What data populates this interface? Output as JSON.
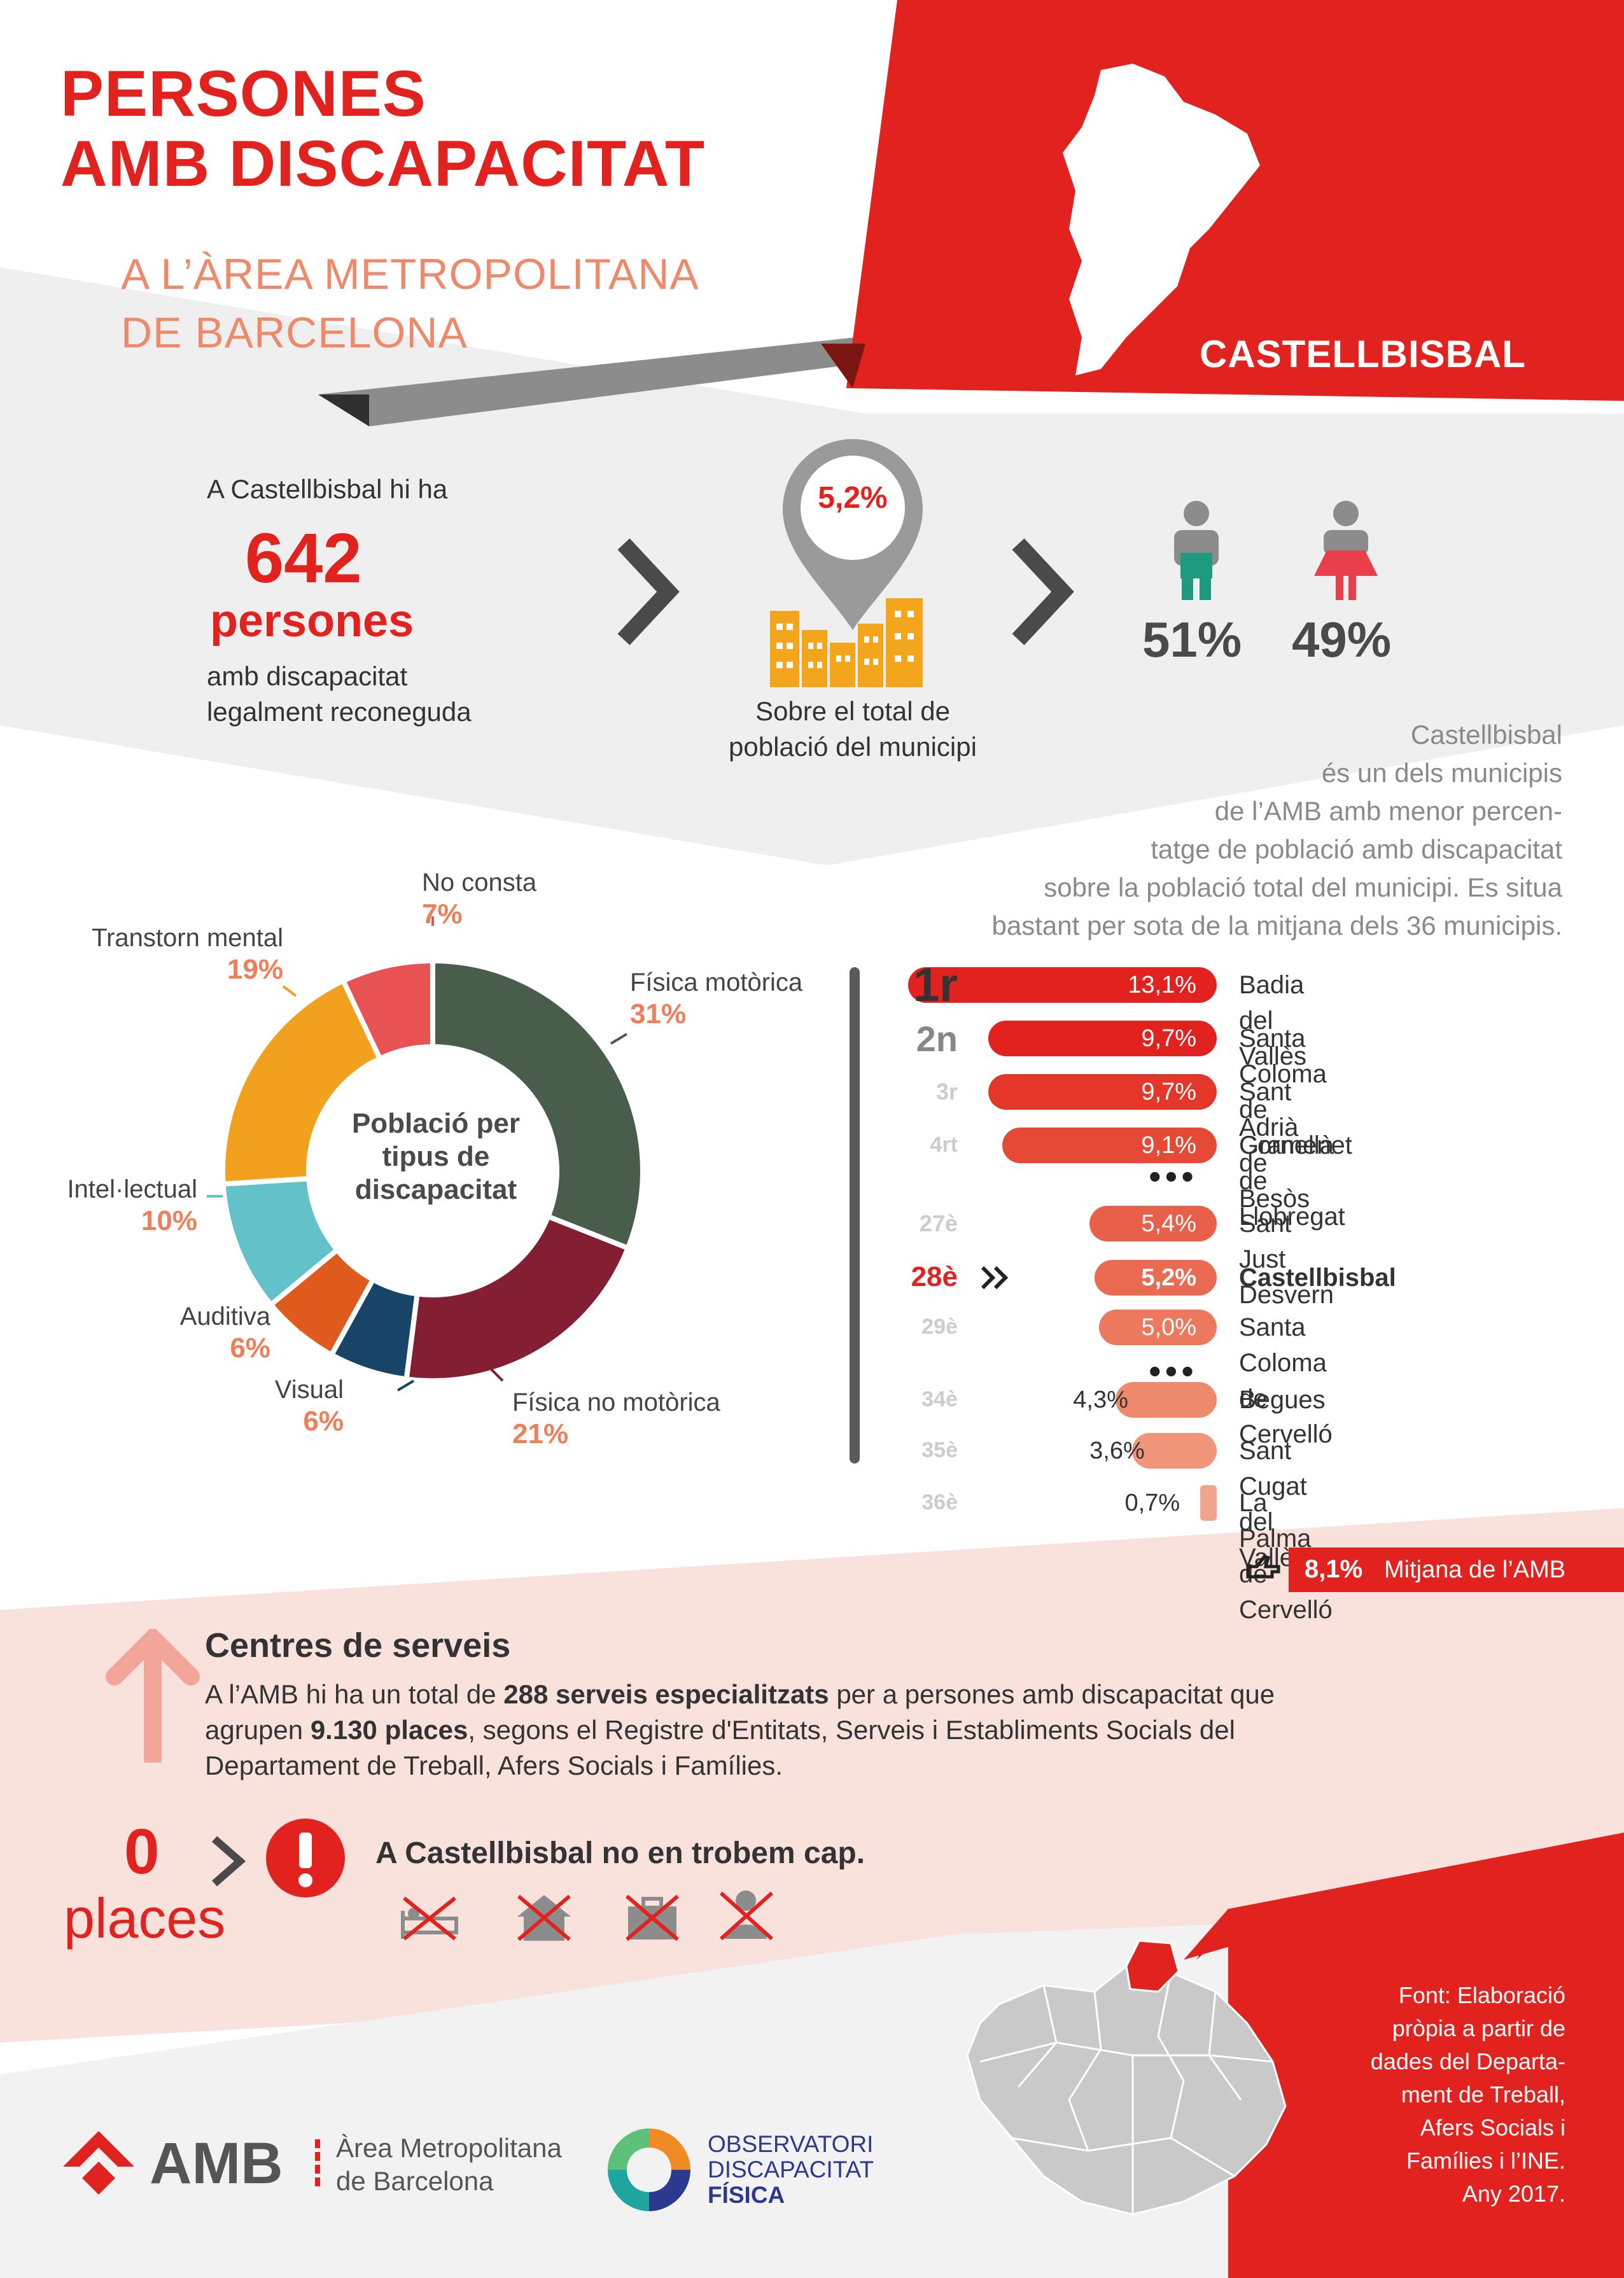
{
  "header": {
    "title_lines": [
      "PERSONES",
      "AMB DISCAPACITAT"
    ],
    "subtitle_lines": [
      "A L’ÀREA METROPOLITANA",
      "DE BARCELONA"
    ],
    "municipality": "CASTELLBISBAL"
  },
  "stats": {
    "intro": "A Castellbisbal hi ha",
    "count": "642",
    "unit": "persones",
    "desc_lines": [
      "amb discapacitat",
      "legalment reconeguda"
    ],
    "percent": "5,2%",
    "percent_desc_lines": [
      "Sobre el total de",
      "població del municipi"
    ],
    "male_pct": "51%",
    "female_pct": "49%"
  },
  "description_lines": [
    "Castellbisbal",
    "és un dels municipis",
    "de l’AMB amb menor percen-",
    "tatge de població amb discapacitat",
    "sobre la població total del municipi. Es situa",
    "bastant per sota de la mitjana dels 36 municipis."
  ],
  "chart_data": {
    "type": "pie",
    "title": "Població per tipus de discapacitat",
    "categories": [
      "Física motòrica",
      "Física no motòrica",
      "Visual",
      "Auditiva",
      "Intel·lectual",
      "Transtorn mental",
      "No consta"
    ],
    "values": [
      31,
      21,
      6,
      6,
      10,
      19,
      7
    ],
    "value_labels": [
      "31%",
      "21%",
      "6%",
      "6%",
      "10%",
      "19%",
      "7%"
    ],
    "colors": [
      "#485d4b",
      "#841f33",
      "#174467",
      "#e15a1d",
      "#63c1c9",
      "#f2a11e",
      "#e85253"
    ]
  },
  "ranking": {
    "rows": [
      {
        "rank": "1r",
        "value": 13.1,
        "label": "13,1%",
        "name": "Badia del Vallès",
        "color": "#e2221f"
      },
      {
        "rank": "2n",
        "value": 9.7,
        "label": "9,7%",
        "name": "Santa Coloma de Gramenet",
        "color": "#e2221f"
      },
      {
        "rank": "3r",
        "value": 9.7,
        "label": "9,7%",
        "name": "Sant Adrià de Besòs",
        "color": "#e4372a"
      },
      {
        "rank": "4rt",
        "value": 9.1,
        "label": "9,1%",
        "name": "Cornellà de Llobregat",
        "color": "#e54a36"
      },
      {
        "rank": "27è",
        "value": 5.4,
        "label": "5,4%",
        "name": "Sant Just Desvern",
        "color": "#e8604a"
      },
      {
        "rank": "28è",
        "value": 5.2,
        "label": "5,2%",
        "name": "Castellbisbal",
        "color": "#ea6a52"
      },
      {
        "rank": "29è",
        "value": 5.0,
        "label": "5,0%",
        "name": "Santa Coloma de Cervelló",
        "color": "#ec785e"
      },
      {
        "rank": "34è",
        "value": 4.3,
        "label": "4,3%",
        "name": "Begues",
        "color": "#ee8a6c"
      },
      {
        "rank": "35è",
        "value": 3.6,
        "label": "3,6%",
        "name": "Sant Cugat del Vallès",
        "color": "#f0957a"
      },
      {
        "rank": "36è",
        "value": 0.7,
        "label": "0,7%",
        "name": "La Palma de Cervelló",
        "color": "#f3a38b"
      }
    ],
    "average_value": "8,1%",
    "average_label": "Mitjana de l’AMB"
  },
  "services": {
    "heading": "Centres de serveis",
    "text_parts": [
      "A l’AMB hi ha un total de ",
      "288 serveis especialitzats",
      " per a persones amb discapacitat que agrupen ",
      "9.130 places",
      ", segons el Registre d'Entitats, Serveis i Establiments Socials del Departament de Treball, Afers Socials i Famílies."
    ],
    "places_count": "0",
    "places_label": "places",
    "none_text": "A Castellbisbal no en trobem cap."
  },
  "source_lines": [
    "Font: Elaboració",
    "pròpia a partir de",
    "dades del Departa-",
    "ment de Treball,",
    "Afers Socials i",
    "Famílies i l’INE.",
    "Any 2017."
  ],
  "footer": {
    "amb_logo": "AMB",
    "amb_name_lines": [
      "Àrea Metropolitana",
      "de Barcelona"
    ],
    "obs_lines": [
      "OBSERVATORI",
      "DISCAPACITAT",
      "FÍSICA"
    ]
  }
}
